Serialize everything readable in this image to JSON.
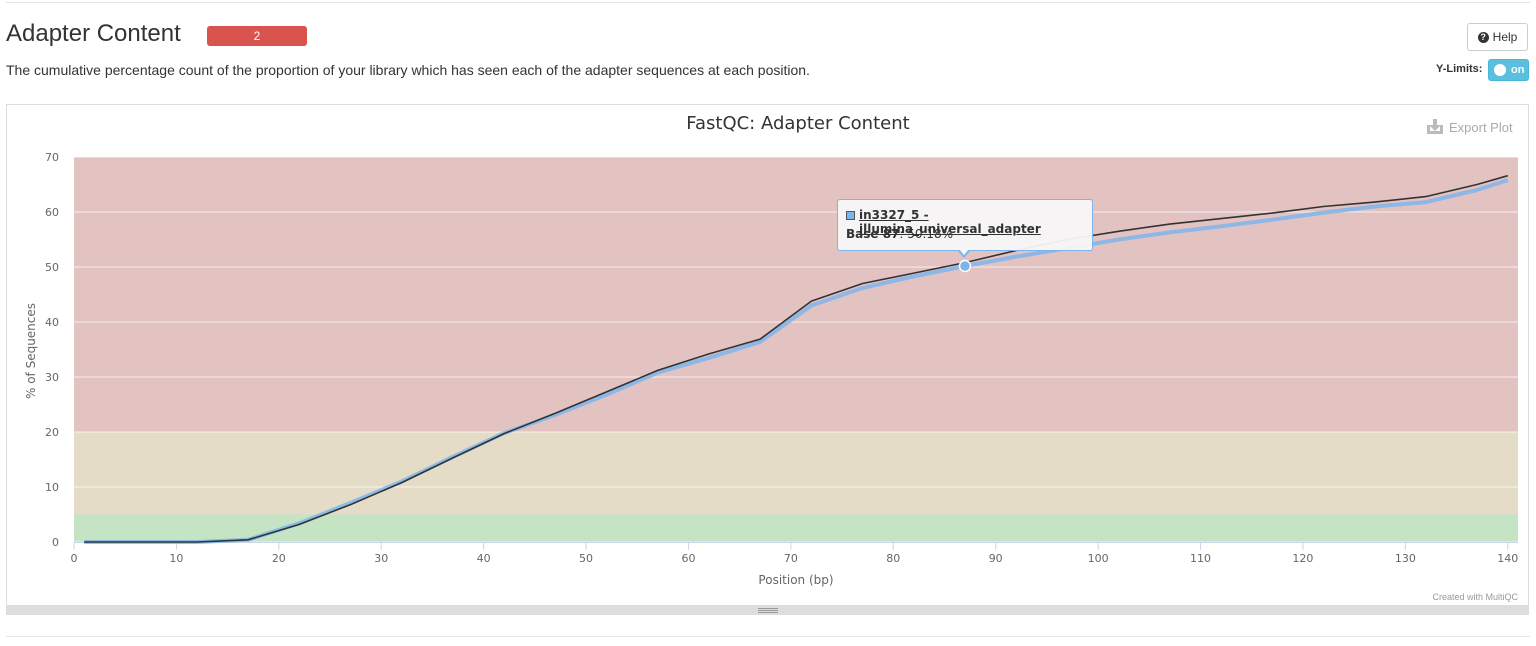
{
  "section": {
    "title": "Adapter Content",
    "badge": "2",
    "description": "The cumulative percentage count of the proportion of your library which has seen each of the adapter sequences at each position."
  },
  "controls": {
    "help_label": "Help",
    "ylimits_label": "Y-Limits:",
    "ylimits_toggle": "on"
  },
  "plot": {
    "export_label": "Export Plot",
    "credit": "Created with MultiQC"
  },
  "tooltip": {
    "series": "in3327_5 - illumina_universal_adapter",
    "label": "Base 87",
    "value": ": 50.18%"
  },
  "colors": {
    "fail_band": "#e3c2c2",
    "warn_band": "#e4dcc6",
    "pass_band": "#c4e4c4",
    "series_highlight": "#7cb5ec",
    "series_line": "#333333",
    "badge": "#d9534f",
    "toggle": "#5bc0de"
  },
  "chart_data": {
    "type": "line",
    "title": "FastQC: Adapter Content",
    "xlabel": "Position (bp)",
    "ylabel": "% of Sequences",
    "xlim": [
      0,
      141
    ],
    "ylim": [
      0,
      70
    ],
    "x_ticks": [
      0,
      10,
      20,
      30,
      40,
      50,
      60,
      70,
      80,
      90,
      100,
      110,
      120,
      130,
      140
    ],
    "y_ticks": [
      0,
      10,
      20,
      30,
      40,
      50,
      60,
      70
    ],
    "bands": [
      {
        "from": 0,
        "to": 5,
        "status": "pass"
      },
      {
        "from": 5,
        "to": 20,
        "status": "warn"
      },
      {
        "from": 20,
        "to": 70,
        "status": "fail"
      }
    ],
    "series": [
      {
        "name": "in3327_5 - illumina_universal_adapter",
        "color": "#7cb5ec",
        "x": [
          1,
          7,
          12,
          17,
          22,
          27,
          32,
          37,
          42,
          47,
          52,
          57,
          62,
          67,
          72,
          77,
          82,
          87,
          92,
          97,
          102,
          107,
          112,
          117,
          122,
          127,
          132,
          137,
          140
        ],
        "y": [
          0.0,
          0.0,
          0.0,
          0.4,
          3.4,
          7.1,
          11.0,
          15.5,
          19.8,
          23.1,
          26.8,
          30.8,
          33.5,
          36.4,
          43.0,
          46.2,
          48.3,
          50.18,
          51.9,
          53.4,
          55.0,
          56.3,
          57.4,
          58.6,
          59.9,
          61.0,
          61.8,
          64.0,
          65.8
        ]
      },
      {
        "color": "#333333",
        "x": [
          1,
          7,
          12,
          17,
          22,
          27,
          32,
          37,
          42,
          47,
          52,
          57,
          62,
          67,
          72,
          77,
          82,
          87,
          92,
          97,
          102,
          107,
          112,
          117,
          122,
          127,
          132,
          137,
          140
        ],
        "y": [
          0.0,
          0.0,
          0.0,
          0.4,
          3.2,
          6.8,
          10.8,
          15.3,
          19.7,
          23.4,
          27.3,
          31.2,
          34.2,
          36.9,
          43.8,
          47.0,
          48.9,
          50.8,
          53.0,
          55.0,
          56.5,
          57.8,
          58.8,
          59.8,
          61.0,
          61.8,
          62.8,
          65.0,
          66.6
        ]
      }
    ],
    "highlight_point": {
      "series": 0,
      "x": 87,
      "y": 50.18
    }
  }
}
